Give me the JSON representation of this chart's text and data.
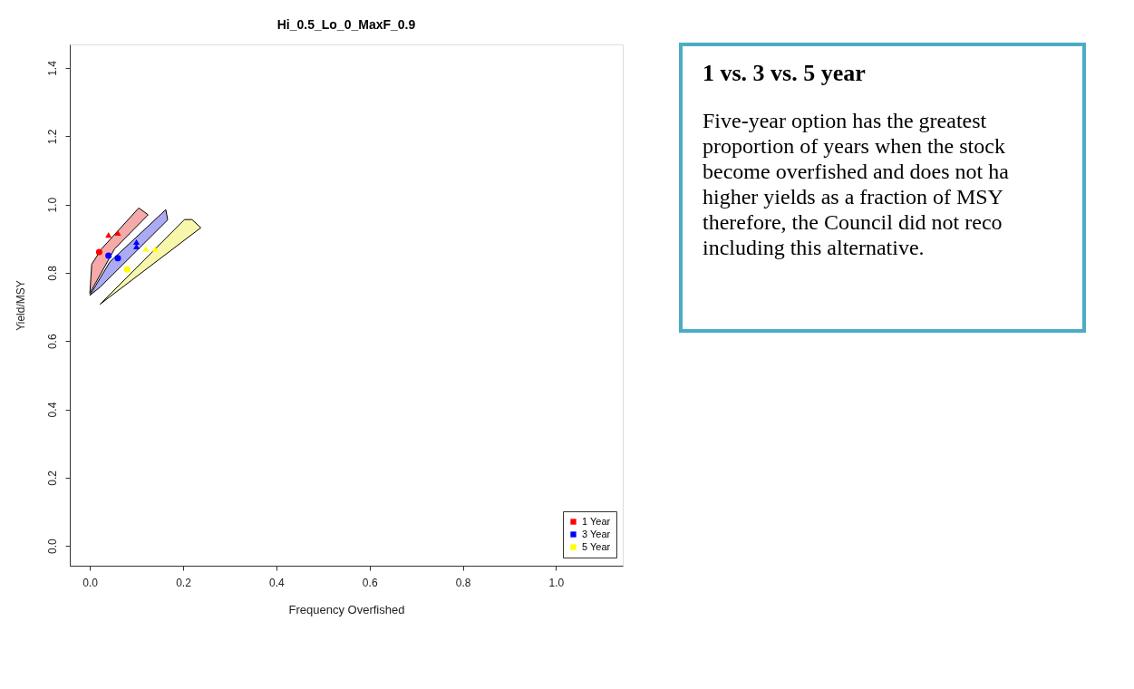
{
  "chart_data": [
    {
      "type": "scatter",
      "title": "Hi_0.5_Lo_0_MaxF_0.9",
      "xlabel": "Frequency Overfished",
      "ylabel": "Yield/MSY",
      "xlim": [
        -0.043,
        1.143
      ],
      "ylim": [
        -0.058,
        1.469
      ],
      "xticks": [
        {
          "value": 0,
          "label": "0.0"
        },
        0.2,
        0.4,
        0.6,
        0.8,
        {
          "value": 1,
          "label": "1.0"
        }
      ],
      "yticks": [
        {
          "value": 0,
          "label": "0.0"
        },
        0.2,
        0.4,
        0.6,
        0.8,
        {
          "value": 1,
          "label": "1.0"
        },
        1.2,
        1.4
      ],
      "grid": false,
      "legend": "bottom right",
      "series": [
        {
          "type": "area",
          "color": "#f5a9a9",
          "x": [
            0,
            0.004,
            0.025,
            0.105,
            0.125,
            0.053,
            0
          ],
          "values": [
            0.74,
            0.825,
            0.87,
            0.99,
            0.97,
            0.87,
            0.74
          ]
        },
        {
          "type": "area",
          "color": "#aaaaf5",
          "x": [
            0,
            0.043,
            0.163,
            0.167,
            0.022,
            0
          ],
          "values": [
            0.734,
            0.832,
            0.985,
            0.955,
            0.758,
            0.734
          ]
        },
        {
          "type": "area",
          "color": "#f8f6aa",
          "x": [
            0.022,
            0.203,
            0.219,
            0.238,
            0.022
          ],
          "values": [
            0.708,
            0.956,
            0.956,
            0.932,
            0.708
          ]
        },
        {
          "type": "scatter",
          "name": "1 Year",
          "color": "#ff0000",
          "marker": "circle",
          "x": [
            0.02
          ],
          "values": [
            0.861
          ]
        },
        {
          "type": "scatter",
          "color": "#ff0000",
          "marker": "triangle",
          "x": [
            0.04,
            0.06
          ],
          "values": [
            0.911,
            0.917
          ]
        },
        {
          "type": "scatter",
          "name": "3 Year",
          "color": "#0000ff",
          "marker": "circle",
          "x": [
            0.04,
            0.06
          ],
          "values": [
            0.85,
            0.843
          ]
        },
        {
          "type": "scatter",
          "color": "#0000ff",
          "marker": "triangle",
          "x": [
            0.1,
            0.1
          ],
          "values": [
            0.89,
            0.877
          ]
        },
        {
          "type": "scatter",
          "name": "5 Year",
          "color": "#ffff00",
          "marker": "circle",
          "x": [
            0.08
          ],
          "values": [
            0.81
          ]
        },
        {
          "type": "scatter",
          "color": "#ffff00",
          "marker": "triangle",
          "x": [
            0.12,
            0.14
          ],
          "values": [
            0.87,
            0.87
          ]
        }
      ]
    },
    {
      "type": "other",
      "title": "1 vs. 3 vs. 5 year",
      "annotations": [
        "Five-year option has the greatest",
        "proportion of years when the stock",
        "become overfished and does not ha",
        "higher yields as a fraction of MSY",
        "therefore, the Council did not reco",
        "including this alternative."
      ]
    }
  ]
}
